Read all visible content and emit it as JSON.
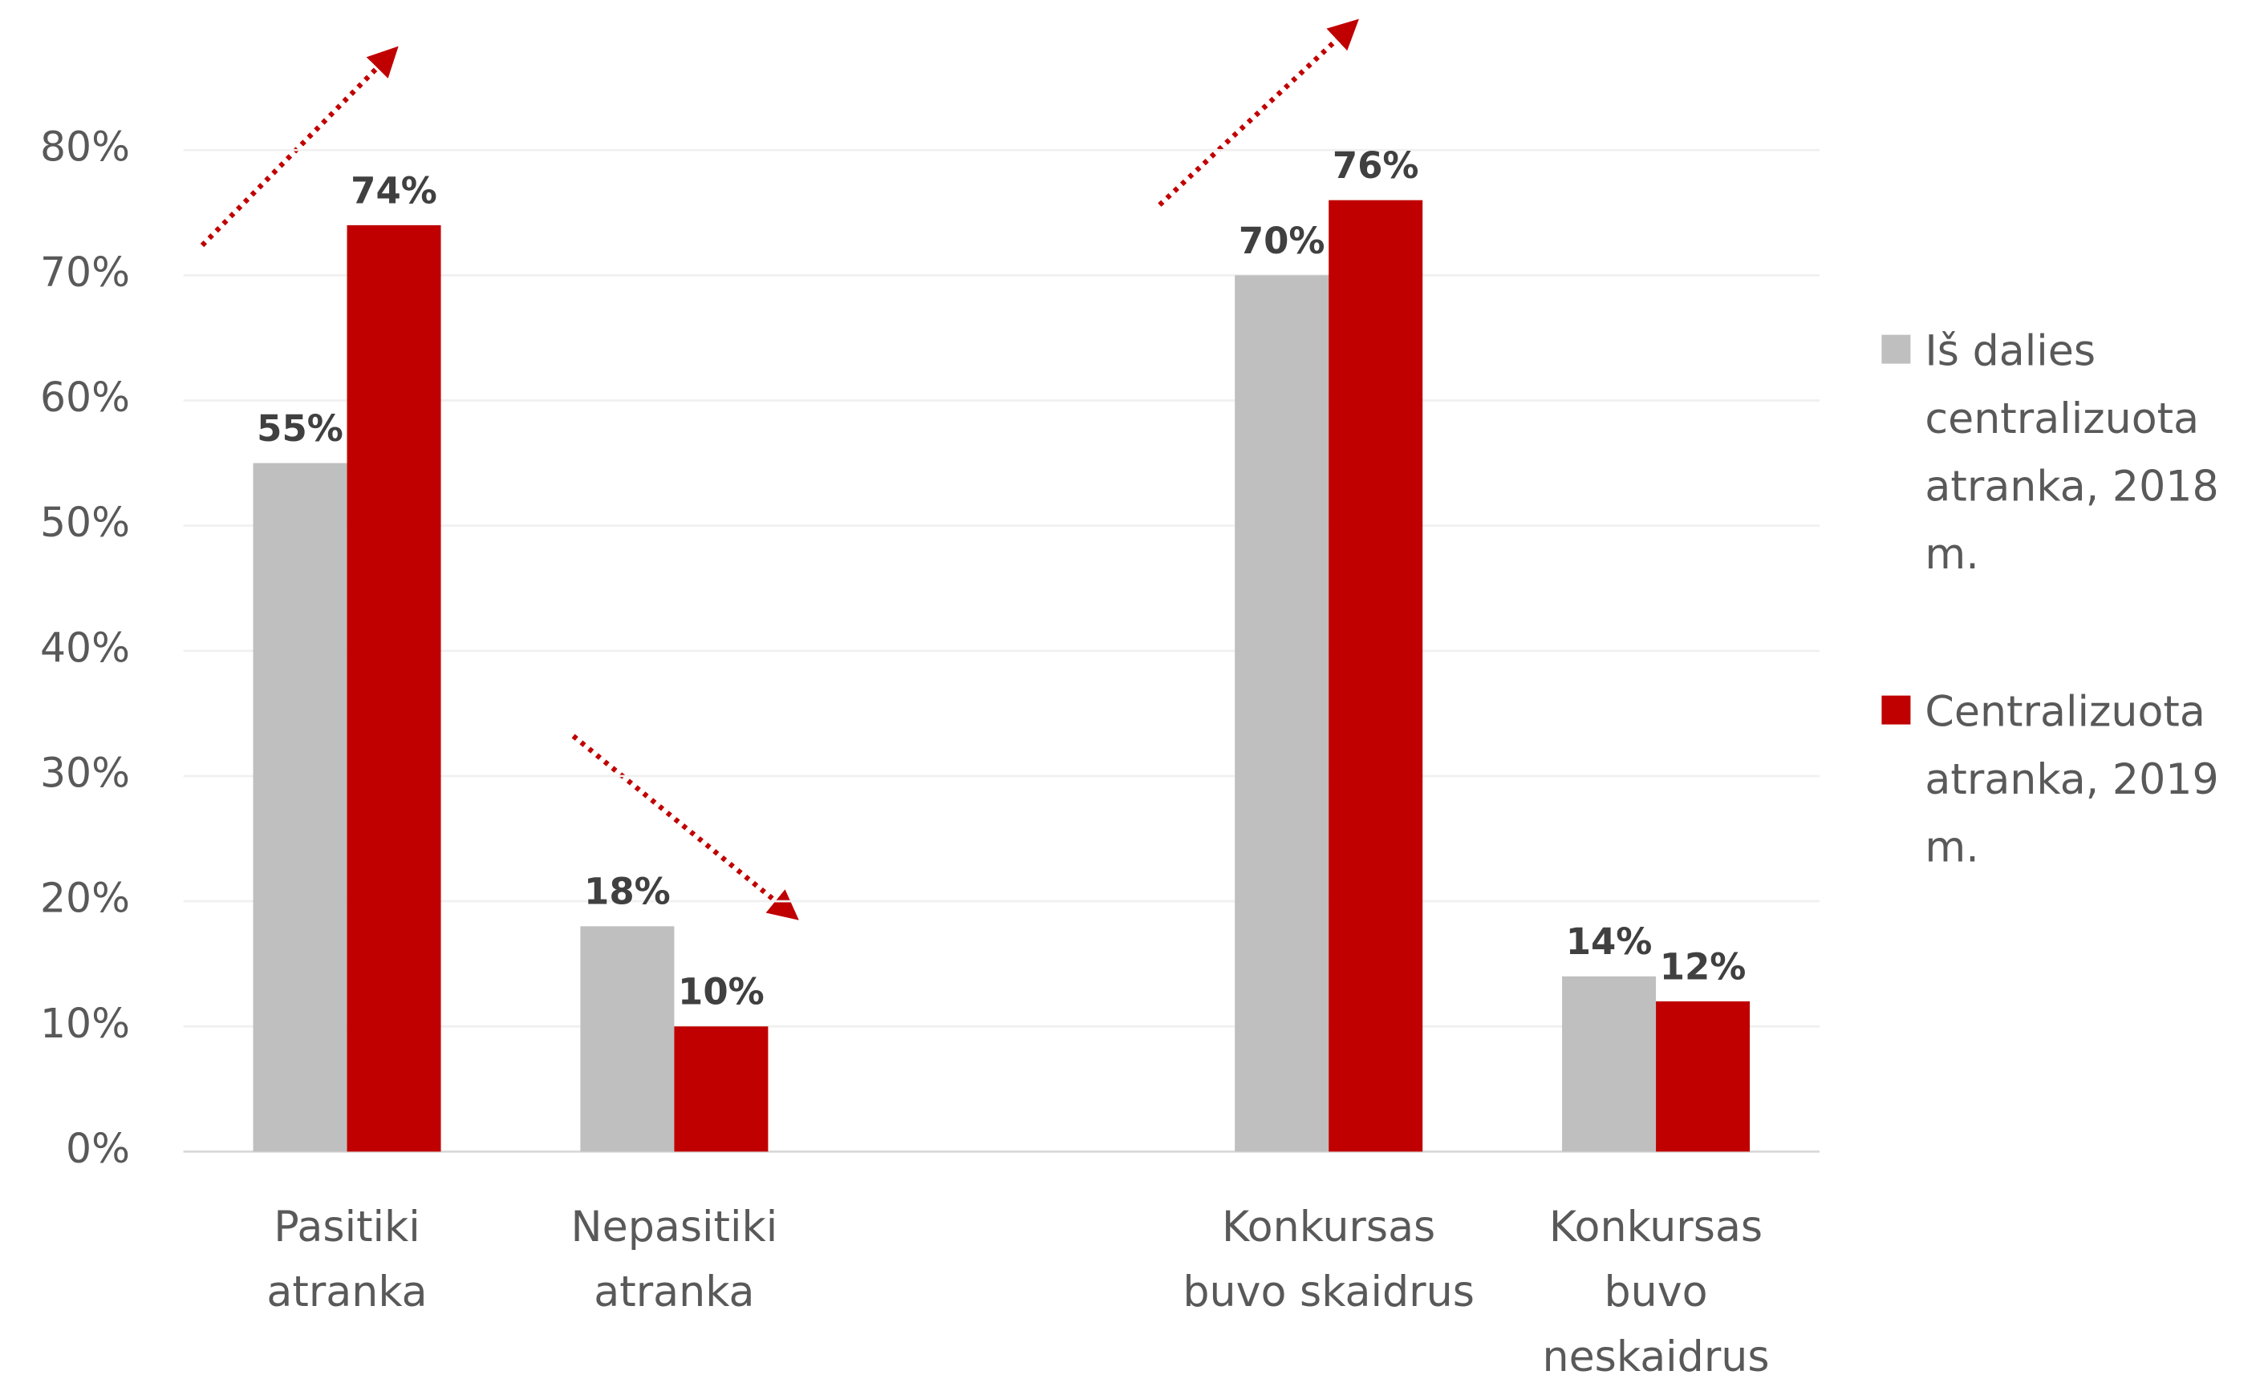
{
  "chart_data": {
    "type": "bar",
    "categories": [
      "Pasitiki atranka",
      "Nepasitiki atranka",
      null,
      "Konkursas buvo skaidrus",
      "Konkursas buvo neskaidrus"
    ],
    "series": [
      {
        "name": "Iš dalies centralizuota atranka, 2018 m.",
        "color": "#bfbfbf",
        "values": [
          55,
          18,
          null,
          70,
          14
        ],
        "value_labels": [
          "55%",
          "18%",
          null,
          "70%",
          "14%"
        ]
      },
      {
        "name": "Centralizuota atranka, 2019 m.",
        "color": "#c00000",
        "values": [
          74,
          10,
          null,
          76,
          12
        ],
        "value_labels": [
          "74%",
          "10%",
          null,
          "76%",
          "12%"
        ]
      }
    ],
    "ylim": [
      0,
      80
    ],
    "yticks": [
      {
        "value": 0,
        "label": "0%"
      },
      {
        "value": 10,
        "label": "10%"
      },
      {
        "value": 20,
        "label": "20%"
      },
      {
        "value": 30,
        "label": "30%"
      },
      {
        "value": 40,
        "label": "40%"
      },
      {
        "value": 50,
        "label": "50%"
      },
      {
        "value": 60,
        "label": "60%"
      },
      {
        "value": 70,
        "label": "70%"
      },
      {
        "value": 80,
        "label": "80%"
      }
    ],
    "grid": true,
    "legend": "right"
  }
}
